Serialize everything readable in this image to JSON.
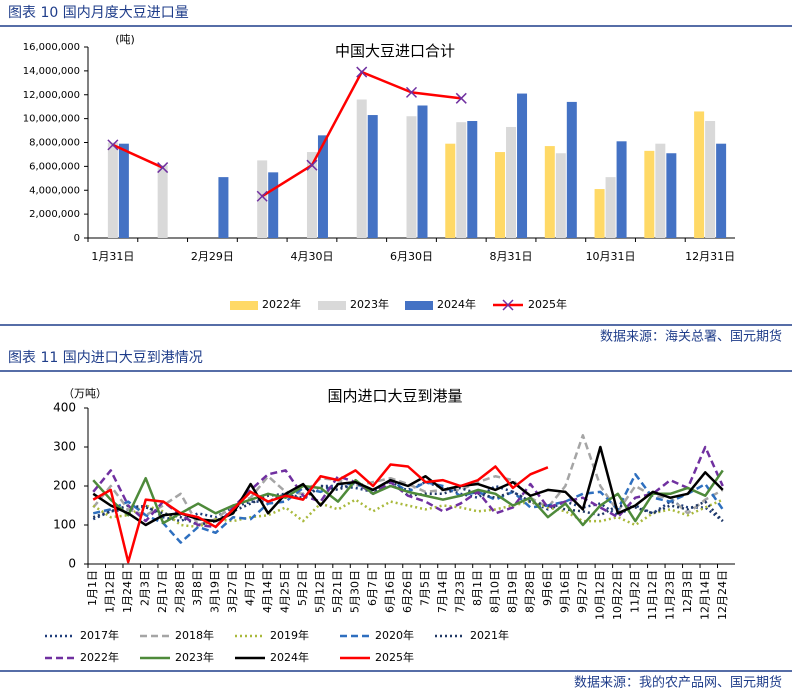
{
  "sections": [
    {
      "caption": "图表 10 国内月度大豆进口量",
      "source": "数据来源：海关总署、国元期货"
    },
    {
      "caption": "图表 11 国内进口大豆到港情况",
      "source": "数据来源：我的农产品网、国元期货"
    }
  ],
  "chart_data": [
    {
      "type": "bar",
      "title": "中国大豆进口合计",
      "ylabel": "(吨)",
      "categories": [
        "1月31日",
        null,
        "2月29日",
        null,
        "4月30日",
        null,
        "6月30日",
        null,
        "8月31日",
        null,
        "10月31日",
        null,
        "12月31日"
      ],
      "series": [
        {
          "name": "2022年",
          "color": "#ffd966",
          "values": [
            null,
            null,
            null,
            null,
            null,
            null,
            null,
            7900000,
            7200000,
            7700000,
            4100000,
            7300000,
            10600000
          ]
        },
        {
          "name": "2023年",
          "color": "#d9d9d9",
          "values": [
            8000000,
            6100000,
            null,
            6500000,
            7200000,
            11600000,
            10200000,
            9700000,
            9300000,
            7100000,
            5100000,
            7900000,
            9800000
          ]
        },
        {
          "name": "2024年",
          "color": "#4472c4",
          "values": [
            7900000,
            null,
            5100000,
            5500000,
            8600000,
            10300000,
            11100000,
            9800000,
            12100000,
            11400000,
            8100000,
            7100000,
            7900000
          ]
        },
        {
          "name": "2025年",
          "color": "#ff0000",
          "type": "line",
          "marker": "x",
          "dash": "solid",
          "values": [
            7800000,
            5900000,
            null,
            3500000,
            6100000,
            13900000,
            12200000,
            11700000,
            null,
            null,
            null,
            null,
            null
          ]
        }
      ],
      "ylim": [
        0,
        16000000
      ],
      "yticks": [
        0,
        {
          "value": 2000000,
          "label": "2,000,000"
        },
        {
          "value": 4000000,
          "label": "4,000,000"
        },
        {
          "value": 6000000,
          "label": "6,000,000"
        },
        {
          "value": 8000000,
          "label": "8,000,000"
        },
        {
          "value": 10000000,
          "label": "10,000,000"
        },
        {
          "value": 12000000,
          "label": "12,000,000"
        },
        {
          "value": 14000000,
          "label": "14,000,000"
        },
        {
          "value": 16000000,
          "label": "16,000,000"
        }
      ],
      "grid": false,
      "legend": "bottom"
    },
    {
      "type": "line",
      "title": "国内进口大豆到港量",
      "ylabel": "（万吨）",
      "categories": [
        "1月1日",
        "1月12日",
        "1月24日",
        "2月3日",
        "2月17日",
        "2月28日",
        "3月8日",
        "3月19日",
        "3月27日",
        "4月7日",
        "4月14日",
        "4月25日",
        "5月2日",
        "5月12日",
        "5月21日",
        "5月30日",
        "6月7日",
        "6月16日",
        "6月26日",
        "7月5日",
        "7月14日",
        "7月23日",
        "8月1日",
        "8月10日",
        "8月19日",
        "8月28日",
        "9月6日",
        "9月16日",
        "9月27日",
        "10月12日",
        "10月22日",
        "11月2日",
        "11月12日",
        "11月23日",
        "12月3日",
        "12月14日",
        "12月24日"
      ],
      "series": [
        {
          "name": "2017年",
          "color": "#1f3d7a",
          "dash": "dotted",
          "values": [
            115,
            135,
            140,
            150,
            120,
            110,
            130,
            120,
            145,
            160,
            160,
            180,
            170,
            200,
            200,
            195,
            185,
            200,
            190,
            210,
            195,
            180,
            170,
            200,
            185,
            160,
            140,
            160,
            145,
            155,
            125,
            150,
            130,
            160,
            145,
            145,
            110
          ]
        },
        {
          "name": "2018年",
          "color": "#a5a5a5",
          "dash": "dashed",
          "values": [
            145,
            200,
            140,
            125,
            150,
            180,
            100,
            115,
            150,
            170,
            225,
            185,
            180,
            220,
            215,
            200,
            210,
            220,
            205,
            185,
            190,
            190,
            210,
            225,
            215,
            170,
            145,
            200,
            330,
            200,
            135,
            200,
            175,
            170,
            130,
            165,
            190
          ]
        },
        {
          "name": "2019年",
          "color": "#a9b93c",
          "dash": "dotted",
          "values": [
            150,
            120,
            125,
            150,
            135,
            100,
            95,
            115,
            110,
            120,
            125,
            145,
            110,
            155,
            140,
            165,
            135,
            160,
            150,
            140,
            150,
            145,
            135,
            140,
            150,
            160,
            145,
            135,
            110,
            110,
            120,
            100,
            130,
            140,
            125,
            145,
            165
          ]
        },
        {
          "name": "2020年",
          "color": "#2e6fbf",
          "dash": "dashed",
          "values": [
            130,
            140,
            160,
            125,
            105,
            55,
            95,
            80,
            120,
            115,
            155,
            160,
            195,
            185,
            205,
            205,
            190,
            215,
            185,
            210,
            200,
            175,
            185,
            165,
            185,
            145,
            150,
            160,
            180,
            185,
            140,
            230,
            170,
            160,
            180,
            205,
            140
          ]
        },
        {
          "name": "2021年",
          "color": "#203864",
          "dash": "dotted",
          "values": [
            120,
            135,
            150,
            145,
            130,
            120,
            100,
            110,
            135,
            155,
            175,
            180,
            165,
            200,
            190,
            210,
            180,
            215,
            175,
            180,
            180,
            195,
            180,
            170,
            185,
            160,
            150,
            140,
            135,
            125,
            150,
            145,
            130,
            150,
            140,
            160,
            110
          ]
        },
        {
          "name": "2022年",
          "color": "#7030a0",
          "dash": "dashed",
          "values": [
            185,
            240,
            150,
            110,
            160,
            125,
            100,
            95,
            145,
            190,
            230,
            240,
            175,
            160,
            225,
            210,
            180,
            210,
            175,
            160,
            135,
            155,
            185,
            130,
            145,
            205,
            145,
            160,
            170,
            145,
            120,
            170,
            180,
            215,
            195,
            300,
            200
          ]
        },
        {
          "name": "2023年",
          "color": "#4e8a3a",
          "dash": "solid",
          "values": [
            215,
            165,
            125,
            220,
            105,
            130,
            155,
            130,
            150,
            165,
            180,
            170,
            200,
            195,
            160,
            215,
            180,
            200,
            185,
            175,
            165,
            175,
            190,
            180,
            150,
            170,
            120,
            155,
            100,
            150,
            180,
            110,
            180,
            180,
            195,
            175,
            240
          ]
        },
        {
          "name": "2024年",
          "color": "#000000",
          "dash": "solid",
          "values": [
            180,
            150,
            130,
            100,
            125,
            130,
            115,
            110,
            130,
            205,
            130,
            180,
            205,
            150,
            205,
            210,
            190,
            215,
            200,
            225,
            190,
            200,
            205,
            190,
            210,
            175,
            190,
            185,
            140,
            300,
            130,
            150,
            185,
            170,
            180,
            235,
            190
          ]
        },
        {
          "name": "2025年",
          "color": "#ff0000",
          "dash": "solid",
          "values": [
            165,
            190,
            5,
            165,
            160,
            130,
            120,
            95,
            140,
            185,
            160,
            175,
            165,
            225,
            215,
            240,
            200,
            255,
            250,
            210,
            215,
            200,
            215,
            250,
            195,
            230,
            248,
            null,
            null,
            null,
            null,
            null,
            null,
            null,
            null,
            null,
            null
          ]
        }
      ],
      "ylim": [
        0,
        400
      ],
      "yticks": [
        0,
        100,
        200,
        300,
        400
      ],
      "grid": false,
      "legend": "bottom"
    }
  ]
}
